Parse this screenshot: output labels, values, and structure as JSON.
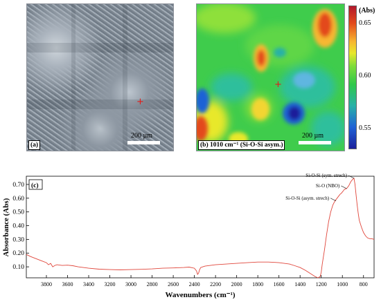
{
  "panel_a": {
    "label": "(a)",
    "scale_label": "200 µm",
    "marker": "+"
  },
  "panel_b": {
    "label": "(b) 1010 cm⁻¹ (Si-O-Si asym.)",
    "scale_label": "200 µm",
    "marker": "+",
    "colorbar": {
      "title": "(Abs)",
      "ticks": [
        "0.65",
        "0.60",
        "0.55"
      ],
      "colors": [
        "#b2182b",
        "#f7b731",
        "#2ec84a",
        "#1f62d6",
        "#1b1f9a"
      ]
    }
  },
  "chart_data": {
    "type": "line",
    "panel_label": "(c)",
    "xlabel": "Wavenumbers (cm⁻¹)",
    "ylabel": "Absorbance (Abs)",
    "xlim": [
      3990,
      700
    ],
    "ylim": [
      0.02,
      0.76
    ],
    "x_ticks": [
      3800,
      3600,
      3400,
      3200,
      3000,
      2800,
      2600,
      2400,
      2200,
      2000,
      1800,
      1600,
      1400,
      1200,
      1000,
      800
    ],
    "y_ticks": [
      0.1,
      0.2,
      0.3,
      0.4,
      0.5,
      0.6,
      0.7
    ],
    "y_tick_labels": [
      "0.10",
      "0.20",
      "0.30",
      "0.40",
      "0.50",
      "0.60",
      "0.70"
    ],
    "line_color": "#e0453a",
    "series": [
      {
        "x": [
          3990,
          3950,
          3900,
          3850,
          3800,
          3780,
          3760,
          3740,
          3720,
          3700,
          3650,
          3600,
          3550,
          3500,
          3400,
          3300,
          3200,
          3100,
          3000,
          2900,
          2800,
          2700,
          2600,
          2500,
          2450,
          2400,
          2380,
          2370,
          2360,
          2350,
          2340,
          2320,
          2300,
          2200,
          2100,
          2000,
          1900,
          1800,
          1700,
          1650,
          1600,
          1550,
          1500,
          1450,
          1400,
          1350,
          1300,
          1260,
          1230,
          1210,
          1200,
          1190,
          1170,
          1150,
          1130,
          1110,
          1090,
          1070,
          1050,
          1040,
          1030,
          1020,
          1010,
          1000,
          990,
          980,
          960,
          940,
          920,
          900,
          890,
          880,
          870,
          860,
          850,
          840,
          820,
          800,
          780,
          760,
          740,
          720,
          700
        ],
        "y": [
          0.19,
          0.175,
          0.16,
          0.145,
          0.13,
          0.115,
          0.125,
          0.1,
          0.11,
          0.115,
          0.11,
          0.112,
          0.108,
          0.1,
          0.09,
          0.083,
          0.08,
          0.078,
          0.08,
          0.082,
          0.085,
          0.09,
          0.092,
          0.095,
          0.098,
          0.09,
          0.07,
          0.045,
          0.055,
          0.08,
          0.095,
          0.1,
          0.105,
          0.115,
          0.12,
          0.125,
          0.13,
          0.135,
          0.135,
          0.133,
          0.13,
          0.125,
          0.12,
          0.108,
          0.095,
          0.075,
          0.05,
          0.03,
          0.02,
          0.03,
          0.06,
          0.12,
          0.22,
          0.33,
          0.43,
          0.5,
          0.55,
          0.58,
          0.6,
          0.61,
          0.62,
          0.63,
          0.635,
          0.645,
          0.655,
          0.665,
          0.67,
          0.69,
          0.72,
          0.74,
          0.745,
          0.7,
          0.62,
          0.55,
          0.49,
          0.44,
          0.39,
          0.35,
          0.325,
          0.31,
          0.305,
          0.305,
          0.3
        ]
      }
    ],
    "annotations": [
      {
        "text": "Si-O-Si (sym. strech)",
        "x": 890,
        "y": 0.745
      },
      {
        "text": "Si-O (NBO)",
        "x": 960,
        "y": 0.67
      },
      {
        "text": "Si-O-Si (asym. strech)",
        "x": 1060,
        "y": 0.58
      }
    ]
  }
}
